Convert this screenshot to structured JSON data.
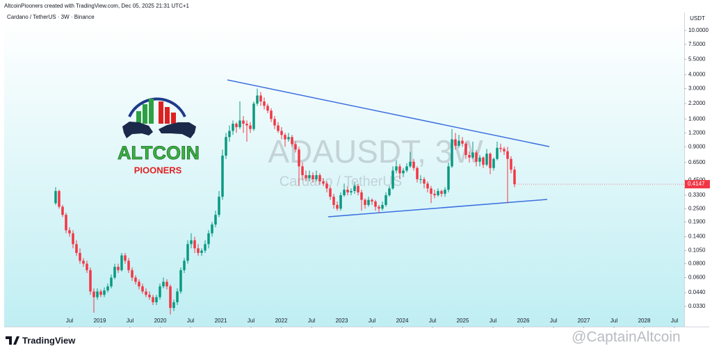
{
  "header": "AltcoinPiooners created with TradingView.com, Dec 05, 2025 21:31 UTC+1",
  "chart_data": {
    "type": "candlestick",
    "title": "Cardano / TetherUS · 3W · Binance",
    "watermark": "ADAUSDT, 3W",
    "watermark_subtitle": "Cardano / TetherUS",
    "axis_unit": "USDT",
    "log_scale": true,
    "grid": false,
    "up_color": "#089981",
    "down_color": "#f23645",
    "ohlc": [
      [
        0.28,
        0.39,
        0.27,
        0.36
      ],
      [
        0.36,
        0.37,
        0.25,
        0.26
      ],
      [
        0.26,
        0.27,
        0.21,
        0.22
      ],
      [
        0.22,
        0.23,
        0.15,
        0.16
      ],
      [
        0.16,
        0.17,
        0.14,
        0.15
      ],
      [
        0.15,
        0.16,
        0.11,
        0.12
      ],
      [
        0.12,
        0.13,
        0.094,
        0.1
      ],
      [
        0.1,
        0.11,
        0.08,
        0.085
      ],
      [
        0.085,
        0.09,
        0.075,
        0.08
      ],
      [
        0.08,
        0.085,
        0.066,
        0.07
      ],
      [
        0.07,
        0.074,
        0.042,
        0.045
      ],
      [
        0.045,
        0.048,
        0.029,
        0.04
      ],
      [
        0.04,
        0.048,
        0.038,
        0.045
      ],
      [
        0.045,
        0.047,
        0.04,
        0.042
      ],
      [
        0.042,
        0.049,
        0.04,
        0.046
      ],
      [
        0.046,
        0.053,
        0.044,
        0.05
      ],
      [
        0.05,
        0.064,
        0.048,
        0.06
      ],
      [
        0.06,
        0.08,
        0.058,
        0.075
      ],
      [
        0.075,
        0.08,
        0.066,
        0.07
      ],
      [
        0.07,
        0.1,
        0.068,
        0.095
      ],
      [
        0.095,
        0.1,
        0.08,
        0.085
      ],
      [
        0.085,
        0.09,
        0.066,
        0.07
      ],
      [
        0.07,
        0.074,
        0.056,
        0.06
      ],
      [
        0.06,
        0.063,
        0.052,
        0.055
      ],
      [
        0.055,
        0.058,
        0.047,
        0.05
      ],
      [
        0.05,
        0.053,
        0.043,
        0.045
      ],
      [
        0.045,
        0.048,
        0.04,
        0.042
      ],
      [
        0.042,
        0.045,
        0.038,
        0.04
      ],
      [
        0.04,
        0.042,
        0.034,
        0.036
      ],
      [
        0.036,
        0.042,
        0.034,
        0.04
      ],
      [
        0.04,
        0.053,
        0.038,
        0.05
      ],
      [
        0.05,
        0.06,
        0.048,
        0.055
      ],
      [
        0.055,
        0.058,
        0.047,
        0.05
      ],
      [
        0.05,
        0.052,
        0.028,
        0.032
      ],
      [
        0.032,
        0.038,
        0.03,
        0.036
      ],
      [
        0.036,
        0.048,
        0.034,
        0.045
      ],
      [
        0.045,
        0.074,
        0.043,
        0.07
      ],
      [
        0.07,
        0.09,
        0.066,
        0.085
      ],
      [
        0.085,
        0.13,
        0.08,
        0.12
      ],
      [
        0.12,
        0.15,
        0.11,
        0.13
      ],
      [
        0.13,
        0.14,
        0.1,
        0.11
      ],
      [
        0.11,
        0.12,
        0.094,
        0.1
      ],
      [
        0.1,
        0.11,
        0.094,
        0.105
      ],
      [
        0.105,
        0.13,
        0.1,
        0.12
      ],
      [
        0.12,
        0.16,
        0.11,
        0.15
      ],
      [
        0.15,
        0.19,
        0.14,
        0.18
      ],
      [
        0.18,
        0.24,
        0.17,
        0.22
      ],
      [
        0.22,
        0.36,
        0.21,
        0.32
      ],
      [
        0.32,
        0.85,
        0.3,
        0.75
      ],
      [
        0.75,
        1.2,
        0.7,
        1.1
      ],
      [
        1.1,
        1.4,
        1.0,
        1.25
      ],
      [
        1.25,
        1.55,
        1.15,
        1.45
      ],
      [
        1.45,
        1.5,
        1.2,
        1.35
      ],
      [
        1.35,
        2.3,
        1.3,
        1.55
      ],
      [
        1.55,
        1.7,
        1.2,
        1.45
      ],
      [
        1.45,
        1.55,
        1.0,
        1.4
      ],
      [
        1.4,
        1.5,
        1.2,
        1.3
      ],
      [
        1.3,
        2.3,
        1.25,
        2.2
      ],
      [
        2.2,
        3.0,
        2.1,
        2.6
      ],
      [
        2.6,
        2.8,
        2.1,
        2.3
      ],
      [
        2.3,
        2.5,
        1.95,
        2.1
      ],
      [
        2.1,
        2.2,
        1.8,
        1.9
      ],
      [
        1.9,
        2.0,
        1.5,
        1.6
      ],
      [
        1.6,
        1.7,
        1.3,
        1.4
      ],
      [
        1.4,
        1.5,
        1.2,
        1.25
      ],
      [
        1.25,
        1.35,
        1.05,
        1.15
      ],
      [
        1.15,
        1.2,
        0.9,
        1.05
      ],
      [
        1.05,
        1.2,
        1.0,
        1.1
      ],
      [
        1.1,
        1.15,
        0.9,
        0.95
      ],
      [
        0.95,
        1.0,
        0.8,
        0.85
      ],
      [
        0.85,
        0.9,
        0.4,
        0.6
      ],
      [
        0.6,
        0.65,
        0.45,
        0.5
      ],
      [
        0.5,
        0.55,
        0.44,
        0.47
      ],
      [
        0.47,
        0.55,
        0.44,
        0.5
      ],
      [
        0.5,
        0.53,
        0.43,
        0.46
      ],
      [
        0.46,
        0.55,
        0.44,
        0.5
      ],
      [
        0.5,
        0.52,
        0.41,
        0.44
      ],
      [
        0.44,
        0.47,
        0.4,
        0.42
      ],
      [
        0.42,
        0.44,
        0.35,
        0.38
      ],
      [
        0.38,
        0.4,
        0.3,
        0.32
      ],
      [
        0.32,
        0.34,
        0.25,
        0.27
      ],
      [
        0.27,
        0.29,
        0.24,
        0.25
      ],
      [
        0.25,
        0.35,
        0.24,
        0.33
      ],
      [
        0.33,
        0.42,
        0.32,
        0.37
      ],
      [
        0.37,
        0.4,
        0.33,
        0.35
      ],
      [
        0.35,
        0.38,
        0.33,
        0.36
      ],
      [
        0.36,
        0.43,
        0.34,
        0.4
      ],
      [
        0.4,
        0.42,
        0.33,
        0.35
      ],
      [
        0.35,
        0.37,
        0.24,
        0.3
      ],
      [
        0.3,
        0.31,
        0.25,
        0.27
      ],
      [
        0.27,
        0.32,
        0.26,
        0.3
      ],
      [
        0.3,
        0.31,
        0.27,
        0.29
      ],
      [
        0.29,
        0.3,
        0.24,
        0.26
      ],
      [
        0.26,
        0.27,
        0.23,
        0.25
      ],
      [
        0.25,
        0.29,
        0.24,
        0.27
      ],
      [
        0.27,
        0.35,
        0.26,
        0.33
      ],
      [
        0.33,
        0.4,
        0.32,
        0.38
      ],
      [
        0.38,
        0.6,
        0.37,
        0.55
      ],
      [
        0.55,
        0.68,
        0.52,
        0.6
      ],
      [
        0.6,
        0.63,
        0.46,
        0.52
      ],
      [
        0.52,
        0.58,
        0.48,
        0.55
      ],
      [
        0.55,
        0.64,
        0.53,
        0.6
      ],
      [
        0.6,
        0.81,
        0.58,
        0.66
      ],
      [
        0.66,
        0.7,
        0.55,
        0.58
      ],
      [
        0.58,
        0.6,
        0.43,
        0.46
      ],
      [
        0.46,
        0.5,
        0.42,
        0.46
      ],
      [
        0.46,
        0.48,
        0.38,
        0.42
      ],
      [
        0.42,
        0.44,
        0.35,
        0.38
      ],
      [
        0.38,
        0.4,
        0.28,
        0.34
      ],
      [
        0.34,
        0.37,
        0.31,
        0.33
      ],
      [
        0.33,
        0.38,
        0.32,
        0.36
      ],
      [
        0.36,
        0.37,
        0.32,
        0.34
      ],
      [
        0.34,
        0.39,
        0.32,
        0.37
      ],
      [
        0.37,
        0.65,
        0.35,
        0.6
      ],
      [
        0.6,
        1.3,
        0.58,
        1.05
      ],
      [
        1.05,
        1.2,
        0.85,
        0.92
      ],
      [
        0.92,
        1.15,
        0.88,
        1.02
      ],
      [
        1.02,
        1.1,
        0.9,
        0.96
      ],
      [
        0.96,
        1.0,
        0.7,
        0.76
      ],
      [
        0.76,
        0.82,
        0.65,
        0.72
      ],
      [
        0.72,
        1.0,
        0.7,
        0.8
      ],
      [
        0.8,
        0.84,
        0.6,
        0.66
      ],
      [
        0.66,
        0.76,
        0.6,
        0.72
      ],
      [
        0.72,
        0.74,
        0.58,
        0.62
      ],
      [
        0.62,
        0.86,
        0.6,
        0.78
      ],
      [
        0.78,
        0.8,
        0.51,
        0.58
      ],
      [
        0.58,
        0.72,
        0.55,
        0.7
      ],
      [
        0.7,
        1.0,
        0.68,
        0.88
      ],
      [
        0.88,
        0.96,
        0.8,
        0.86
      ],
      [
        0.86,
        0.9,
        0.76,
        0.82
      ],
      [
        0.82,
        0.9,
        0.28,
        0.7
      ],
      [
        0.7,
        0.74,
        0.52,
        0.56
      ],
      [
        0.56,
        0.6,
        0.39,
        0.4147
      ]
    ],
    "xlim": [
      -14.8,
      180.8
    ],
    "xticks": [
      {
        "value": 4,
        "label": "Jul"
      },
      {
        "value": 12.7,
        "label": "2019"
      },
      {
        "value": 21.4,
        "label": "Jul"
      },
      {
        "value": 30.1,
        "label": "2020"
      },
      {
        "value": 38.8,
        "label": "Jul"
      },
      {
        "value": 47.5,
        "label": "2021"
      },
      {
        "value": 56.2,
        "label": "Jul"
      },
      {
        "value": 64.9,
        "label": "2022"
      },
      {
        "value": 73.6,
        "label": "Jul"
      },
      {
        "value": 82.3,
        "label": "2023"
      },
      {
        "value": 91,
        "label": "Jul"
      },
      {
        "value": 99.7,
        "label": "2024"
      },
      {
        "value": 108.4,
        "label": "Jul"
      },
      {
        "value": 117.1,
        "label": "2025"
      },
      {
        "value": 125.8,
        "label": "Jul"
      },
      {
        "value": 134.5,
        "label": "2026"
      },
      {
        "value": 143.2,
        "label": "Jul"
      },
      {
        "value": 151.9,
        "label": "2027"
      },
      {
        "value": 160.6,
        "label": "Jul"
      },
      {
        "value": 169.3,
        "label": "2028"
      },
      {
        "value": 178,
        "label": "Jul"
      }
    ],
    "ylim": [
      0.027,
      12.2
    ],
    "yticks": [
      {
        "value": 10,
        "label": "10.0000"
      },
      {
        "value": 7.5,
        "label": "7.5000"
      },
      {
        "value": 5.5,
        "label": "5.5000"
      },
      {
        "value": 4,
        "label": "4.0000"
      },
      {
        "value": 3,
        "label": "3.0000"
      },
      {
        "value": 2.2,
        "label": "2.2000"
      },
      {
        "value": 1.6,
        "label": "1.6000"
      },
      {
        "value": 1.2,
        "label": "1.2000"
      },
      {
        "value": 0.9,
        "label": "0.9000"
      },
      {
        "value": 0.65,
        "label": "0.6500"
      },
      {
        "value": 0.45,
        "label": "0.4500"
      },
      {
        "value": 0.33,
        "label": "0.3300"
      },
      {
        "value": 0.25,
        "label": "0.2500"
      },
      {
        "value": 0.19,
        "label": "0.1900"
      },
      {
        "value": 0.14,
        "label": "0.1400"
      },
      {
        "value": 0.105,
        "label": "0.1050"
      },
      {
        "value": 0.08,
        "label": "0.0800"
      },
      {
        "value": 0.06,
        "label": "0.0600"
      },
      {
        "value": 0.044,
        "label": "0.0440"
      },
      {
        "value": 0.033,
        "label": "0.0330"
      }
    ]
  },
  "logo": {
    "line1": "ALTCOIN",
    "line2": "PIOONERS"
  },
  "footer": {
    "brand": "TradingView",
    "credit": "@CaptainAltcoin"
  }
}
